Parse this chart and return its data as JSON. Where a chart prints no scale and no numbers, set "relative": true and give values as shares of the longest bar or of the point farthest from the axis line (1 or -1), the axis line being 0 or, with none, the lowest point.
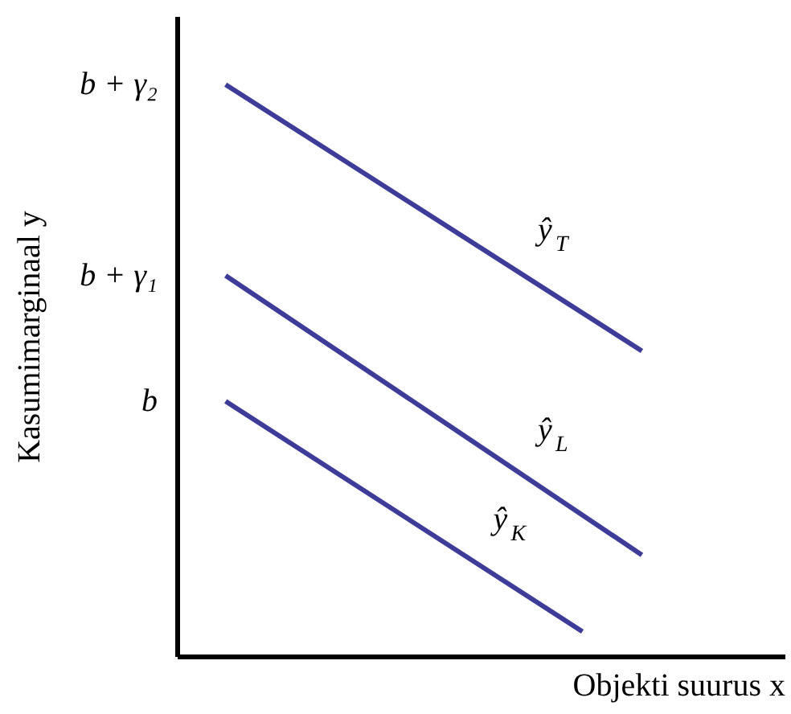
{
  "chart_data": {
    "type": "line",
    "xlabel": "Objekti suurus x",
    "ylabel": "Kasumimarginaal y",
    "categories": [
      null,
      null,
      null,
      null,
      null,
      null,
      null,
      null
    ],
    "relative": true,
    "annotations": [
      "b + γ₂",
      "b + γ₁",
      "b"
    ],
    "marker": "none",
    "line_style": "solid",
    "series": [
      {
        "name": "ŷ$_{T}$",
        "color": "#3d3d99",
        "values": [
          1,
          null,
          null,
          null,
          null,
          null,
          null,
          0.534
        ]
      },
      {
        "name": "ŷ$_{L}$",
        "color": "#3d3d99",
        "values": [
          0.666,
          null,
          null,
          null,
          null,
          null,
          null,
          0.177
        ]
      },
      {
        "name": "ŷ$_{K}$",
        "color": "#3d3d99",
        "values": [
          0.446,
          null,
          null,
          null,
          null,
          null,
          0.043,
          null
        ]
      }
    ]
  }
}
